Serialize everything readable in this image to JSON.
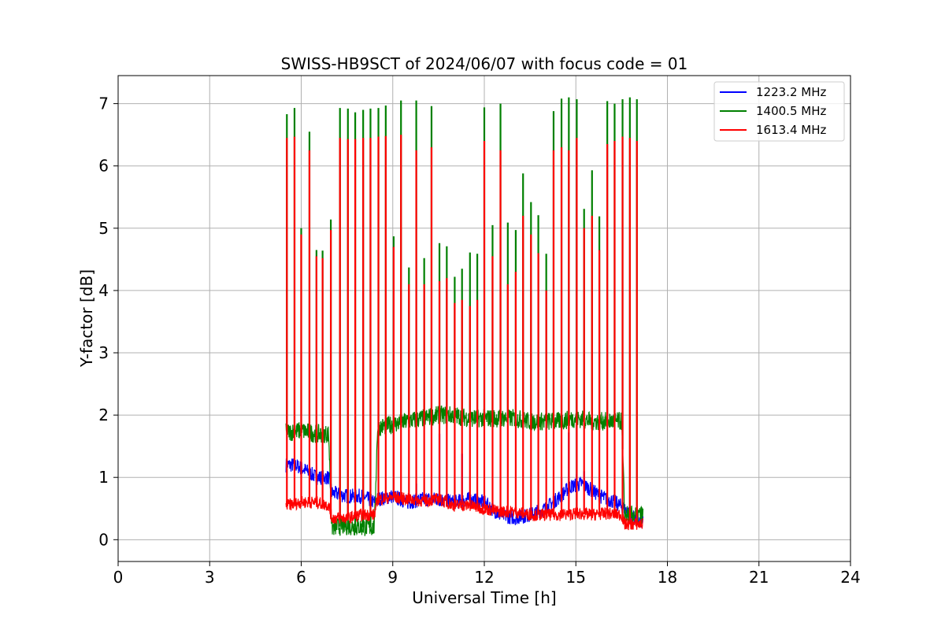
{
  "chart_data": {
    "type": "line",
    "title": "SWISS-HB9SCT of 2024/06/07 with focus code = 01",
    "xlabel": "Universal Time [h]",
    "ylabel": "Y-factor [dB]",
    "xlim": [
      0,
      24
    ],
    "ylim": [
      -0.35,
      7.45
    ],
    "xticks": [
      0,
      3,
      6,
      9,
      12,
      15,
      18,
      21,
      24
    ],
    "yticks": [
      0,
      1,
      2,
      3,
      4,
      5,
      6,
      7
    ],
    "grid": true,
    "legend_position": "top-right",
    "series": [
      {
        "name": "1223.2 MHz",
        "color": "#0000ff",
        "x": [
          5.5,
          5.8,
          6.2,
          6.5,
          6.9,
          7.0,
          7.5,
          8.0,
          8.4,
          8.5,
          9.0,
          9.5,
          10.0,
          10.5,
          11.0,
          11.5,
          12.0,
          12.5,
          13.0,
          13.5,
          14.0,
          14.5,
          14.8,
          15.2,
          15.8,
          16.3,
          16.6,
          17.0,
          17.2
        ],
        "y": [
          1.2,
          1.2,
          1.1,
          1.0,
          1.0,
          0.75,
          0.7,
          0.7,
          0.6,
          0.65,
          0.7,
          0.6,
          0.65,
          0.65,
          0.6,
          0.65,
          0.6,
          0.4,
          0.35,
          0.4,
          0.5,
          0.7,
          0.85,
          0.9,
          0.7,
          0.6,
          0.5,
          0.3,
          0.3
        ]
      },
      {
        "name": "1400.5 MHz",
        "color": "#008000",
        "x": [
          5.5,
          6.0,
          6.5,
          6.9,
          7.0,
          7.5,
          8.0,
          8.4,
          8.5,
          9.0,
          9.5,
          10.0,
          10.5,
          11.0,
          11.5,
          12.0,
          12.5,
          13.0,
          13.5,
          14.0,
          14.5,
          15.0,
          15.5,
          16.0,
          16.5,
          16.6,
          17.0,
          17.2
        ],
        "y": [
          1.72,
          1.75,
          1.7,
          1.7,
          0.2,
          0.22,
          0.2,
          0.2,
          1.8,
          1.85,
          1.9,
          1.95,
          2.0,
          2.0,
          1.95,
          1.95,
          1.95,
          1.95,
          1.9,
          1.9,
          1.9,
          1.95,
          1.9,
          1.9,
          1.9,
          0.4,
          0.4,
          0.4
        ]
      },
      {
        "name": "1613.4 MHz",
        "color": "#ff0000",
        "x": [
          5.5,
          6.0,
          6.5,
          6.9,
          7.0,
          7.5,
          8.0,
          8.4,
          8.5,
          9.0,
          9.5,
          10.0,
          10.5,
          11.0,
          11.5,
          12.0,
          12.5,
          13.0,
          13.5,
          14.0,
          14.5,
          15.0,
          15.5,
          16.0,
          16.5,
          16.6,
          17.0,
          17.2
        ],
        "y": [
          0.55,
          0.6,
          0.6,
          0.55,
          0.35,
          0.35,
          0.4,
          0.4,
          0.65,
          0.68,
          0.65,
          0.62,
          0.65,
          0.55,
          0.55,
          0.5,
          0.45,
          0.45,
          0.4,
          0.4,
          0.4,
          0.42,
          0.4,
          0.42,
          0.4,
          0.25,
          0.25,
          0.25
        ]
      }
    ],
    "calibration_spikes": {
      "x": [
        5.53,
        5.78,
        6.0,
        6.27,
        6.5,
        6.7,
        6.97,
        7.27,
        7.53,
        7.77,
        8.03,
        8.27,
        8.53,
        8.77,
        9.03,
        9.27,
        9.53,
        9.77,
        10.03,
        10.27,
        10.53,
        10.77,
        11.03,
        11.27,
        11.53,
        11.77,
        12.0,
        12.27,
        12.53,
        12.77,
        13.03,
        13.27,
        13.53,
        13.77,
        14.03,
        14.27,
        14.53,
        14.77,
        15.03,
        15.27,
        15.53,
        15.77,
        16.03,
        16.27,
        16.53,
        16.77,
        17.0
      ],
      "green_peak": [
        6.83,
        6.93,
        5.0,
        6.55,
        4.65,
        4.64,
        5.14,
        6.93,
        6.92,
        6.86,
        6.9,
        6.92,
        6.93,
        6.97,
        4.87,
        7.05,
        4.37,
        7.05,
        4.52,
        6.96,
        4.76,
        4.71,
        4.22,
        4.35,
        4.61,
        4.59,
        6.94,
        5.05,
        7.0,
        5.09,
        4.97,
        5.88,
        5.42,
        5.21,
        4.59,
        6.88,
        7.08,
        7.1,
        7.07,
        5.31,
        5.93,
        5.19,
        7.04,
        7.0,
        7.07,
        7.1,
        7.07
      ],
      "red_peak": [
        6.45,
        6.47,
        4.9,
        6.25,
        4.55,
        4.52,
        4.97,
        6.45,
        6.43,
        6.43,
        6.45,
        6.45,
        6.47,
        6.48,
        4.7,
        6.5,
        4.1,
        6.25,
        4.1,
        6.3,
        4.15,
        4.2,
        3.8,
        3.85,
        3.75,
        3.85,
        6.4,
        4.55,
        6.25,
        4.1,
        4.3,
        5.2,
        4.9,
        4.6,
        4.0,
        6.25,
        6.3,
        6.25,
        6.45,
        5.0,
        5.2,
        4.65,
        6.35,
        6.4,
        6.47,
        6.45,
        6.4
      ],
      "blue_peak": [
        1.25,
        1.2,
        1.1,
        1.1,
        1.0,
        1.0,
        0.9,
        0.75,
        0.7,
        0.72,
        0.7,
        0.7,
        0.72,
        0.7,
        0.68,
        0.62,
        0.6,
        0.9,
        0.62,
        0.65,
        1.7,
        0.6,
        0.62,
        1.38,
        0.62,
        0.62,
        0.6,
        0.45,
        0.4,
        0.38,
        0.35,
        0.4,
        0.4,
        0.45,
        0.5,
        0.7,
        1.0,
        1.72,
        1.05,
        1.1,
        0.8,
        0.7,
        0.6,
        0.6,
        0.5,
        0.3,
        0.3
      ]
    }
  }
}
